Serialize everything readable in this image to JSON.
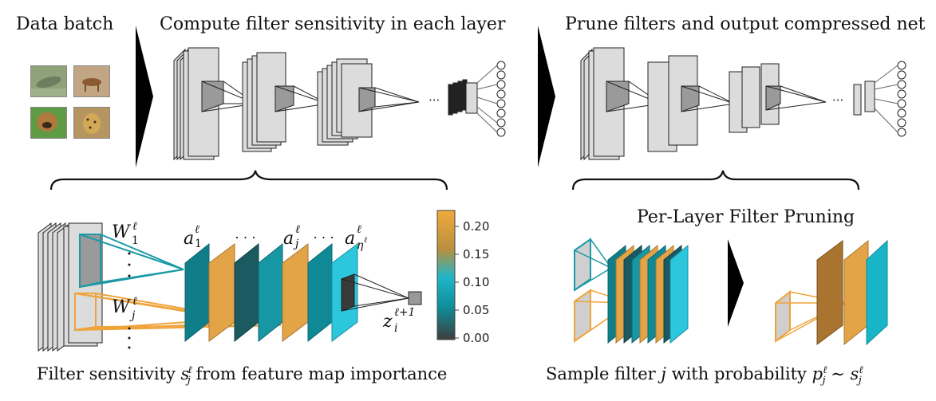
{
  "titles": {
    "data_batch": "Data batch",
    "compute": "Compute filter sensitivity in each layer",
    "prune": "Prune filters and output compressed net",
    "per_layer": "Per-Layer Filter Pruning"
  },
  "captions": {
    "sensitivity_prefix": "Filter sensitivity",
    "sensitivity_suffix": "from feature map importance",
    "sample_prefix": "Sample filter",
    "sample_mid": "with probability"
  },
  "math": {
    "W": "W",
    "a": "a",
    "z": "z",
    "s": "s",
    "p": "p",
    "j": "j",
    "i": "i",
    "ell": "ℓ",
    "one": "1",
    "ell_plus_one": "ℓ+1",
    "eta": "η",
    "sim": "∼",
    "dots": "· · ·",
    "small_dots": "···"
  },
  "colorbar": {
    "ticks": [
      "0.20",
      "0.15",
      "0.10",
      "0.05",
      "0.00"
    ],
    "stops": [
      "#f2a93b",
      "#b8903e",
      "#1fb6c9",
      "#0f8d99",
      "#3d3d3d"
    ]
  },
  "colors": {
    "teal": "#1b9aa6",
    "orange": "#f0a33a",
    "cyan": "#2cc6dd",
    "dark_teal": "#0f6570",
    "brown": "#a97430",
    "gray_filter": "#d0d0d0"
  },
  "images": [
    {
      "name": "fish-image",
      "hue": "#7f9a6e"
    },
    {
      "name": "deer-image",
      "hue": "#b39068"
    },
    {
      "name": "dog-image",
      "hue": "#8a6a3e"
    },
    {
      "name": "cheetah-image",
      "hue": "#a8874e"
    }
  ]
}
